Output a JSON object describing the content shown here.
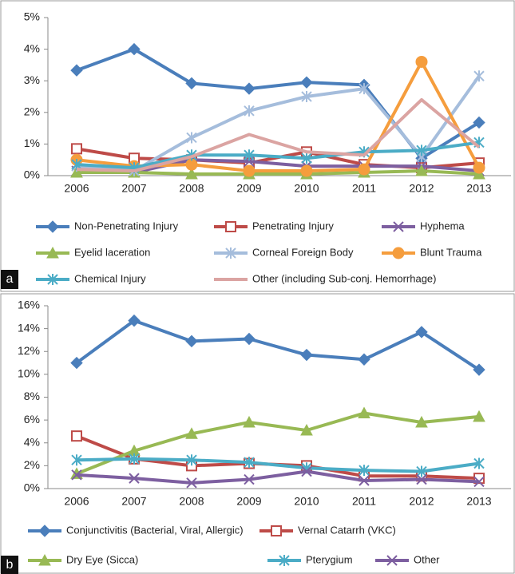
{
  "chart_data": [
    {
      "type": "line",
      "panel_label": "a",
      "categories": [
        "2006",
        "2007",
        "2008",
        "2009",
        "2010",
        "2011",
        "2012",
        "2013"
      ],
      "ylim": [
        0,
        5
      ],
      "yticks": [
        {
          "value": 0,
          "label": "0%"
        },
        {
          "value": 1,
          "label": "1%"
        },
        {
          "value": 2,
          "label": "2%"
        },
        {
          "value": 3,
          "label": "3%"
        },
        {
          "value": 4,
          "label": "4%"
        },
        {
          "value": 5,
          "label": "5%"
        }
      ],
      "grid": false,
      "series": [
        {
          "name": "Non-Penetrating Injury",
          "color": "#4a7ebb",
          "marker": "diamond",
          "values": [
            3.33,
            4.0,
            2.92,
            2.75,
            2.95,
            2.87,
            0.55,
            1.68
          ]
        },
        {
          "name": "Penetrating Injury",
          "color": "#be4b48",
          "marker": "square",
          "values": [
            0.85,
            0.55,
            0.5,
            0.4,
            0.75,
            0.35,
            0.25,
            0.4
          ]
        },
        {
          "name": "Hyphema",
          "color": "#7d5fa0",
          "marker": "x",
          "values": [
            0.15,
            0.1,
            0.5,
            0.45,
            0.3,
            0.3,
            0.3,
            0.15
          ]
        },
        {
          "name": "Eyelid laceration",
          "color": "#98b954",
          "marker": "triangle",
          "values": [
            0.1,
            0.1,
            0.05,
            0.05,
            0.05,
            0.1,
            0.15,
            0.05
          ]
        },
        {
          "name": "Corneal Foreign Body",
          "color": "#a5bddc",
          "marker": "star",
          "values": [
            0.3,
            0.15,
            1.2,
            2.05,
            2.5,
            2.75,
            0.6,
            3.15
          ]
        },
        {
          "name": "Blunt Trauma",
          "color": "#f59d3d",
          "marker": "circle",
          "values": [
            0.5,
            0.3,
            0.35,
            0.15,
            0.15,
            0.2,
            3.6,
            0.25
          ]
        },
        {
          "name": "Chemical Injury",
          "color": "#4bacc6",
          "marker": "star",
          "values": [
            0.35,
            0.25,
            0.65,
            0.65,
            0.55,
            0.75,
            0.8,
            1.05
          ]
        },
        {
          "name": "Other (including Sub-conj. Hemorrhage)",
          "color": "#dba4a2",
          "marker": "none",
          "values": [
            0.2,
            0.15,
            0.6,
            1.3,
            0.75,
            0.65,
            2.4,
            0.9
          ]
        }
      ]
    },
    {
      "type": "line",
      "panel_label": "b",
      "categories": [
        "2006",
        "2007",
        "2008",
        "2009",
        "2010",
        "2011",
        "2012",
        "2013"
      ],
      "ylim": [
        0,
        16
      ],
      "yticks": [
        {
          "value": 0,
          "label": "0%"
        },
        {
          "value": 2,
          "label": "2%"
        },
        {
          "value": 4,
          "label": "4%"
        },
        {
          "value": 6,
          "label": "6%"
        },
        {
          "value": 8,
          "label": "8%"
        },
        {
          "value": 10,
          "label": "10%"
        },
        {
          "value": 12,
          "label": "12%"
        },
        {
          "value": 14,
          "label": "14%"
        },
        {
          "value": 16,
          "label": "16%"
        }
      ],
      "grid": false,
      "series": [
        {
          "name": "Conjunctivitis (Bacterial, Viral, Allergic)",
          "color": "#4a7ebb",
          "marker": "diamond",
          "values": [
            11.0,
            14.7,
            12.9,
            13.1,
            11.7,
            11.3,
            13.7,
            10.4
          ]
        },
        {
          "name": "Vernal Catarrh (VKC)",
          "color": "#be4b48",
          "marker": "square",
          "values": [
            4.6,
            2.6,
            2.0,
            2.2,
            2.0,
            1.1,
            1.1,
            0.9
          ]
        },
        {
          "name": "Dry Eye (Sicca)",
          "color": "#98b954",
          "marker": "triangle",
          "values": [
            1.3,
            3.3,
            4.8,
            5.8,
            5.1,
            6.6,
            5.8,
            6.3
          ]
        },
        {
          "name": "Pterygium",
          "color": "#4bacc6",
          "marker": "star",
          "values": [
            2.5,
            2.6,
            2.5,
            2.3,
            1.8,
            1.6,
            1.5,
            2.2
          ]
        },
        {
          "name": "Other",
          "color": "#7d5fa0",
          "marker": "x",
          "values": [
            1.2,
            0.9,
            0.5,
            0.8,
            1.5,
            0.7,
            0.8,
            0.6
          ]
        }
      ]
    }
  ]
}
